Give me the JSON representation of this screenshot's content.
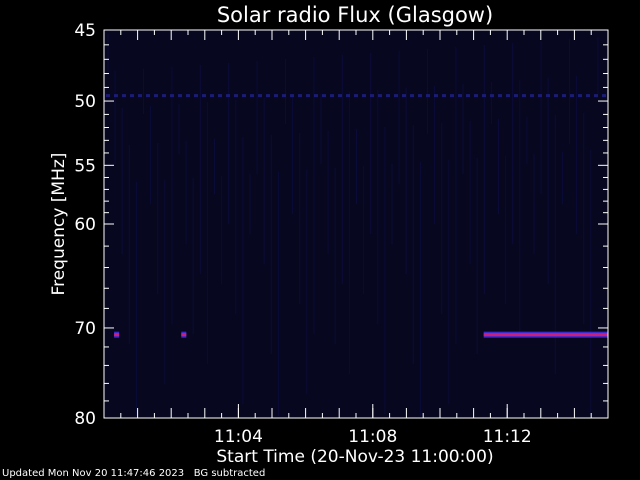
{
  "chart_data": {
    "type": "heatmap",
    "title": "Solar radio Flux (Glasgow)",
    "xlabel": "Start Time (20-Nov-23 11:00:00)",
    "ylabel": "Frequency [MHz]",
    "x_unit": "minutes after 11:00:00",
    "xlim": [
      0,
      15
    ],
    "ylim": [
      80,
      45
    ],
    "x_ticks": [
      {
        "value": 4,
        "label": "11:04"
      },
      {
        "value": 8,
        "label": "11:08"
      },
      {
        "value": 12,
        "label": "11:12"
      }
    ],
    "y_ticks": [
      {
        "value": 45,
        "label": "45"
      },
      {
        "value": 50,
        "label": "50"
      },
      {
        "value": 55,
        "label": "55"
      },
      {
        "value": 60,
        "label": "60"
      },
      {
        "value": 70,
        "label": "70"
      },
      {
        "value": 80,
        "label": "80"
      }
    ],
    "background_color": "#07071f",
    "highlight_color": "#cc1f7a",
    "interference_band_mhz": 49.6,
    "bursts": [
      {
        "freq_mhz": 70.7,
        "start_min": 0.3,
        "end_min": 0.45
      },
      {
        "freq_mhz": 70.7,
        "start_min": 2.3,
        "end_min": 2.45
      },
      {
        "freq_mhz": 70.7,
        "start_min": 11.3,
        "end_min": 15.0
      }
    ]
  },
  "footer": {
    "updated": "Updated Mon Nov 20 11:47:46 2023",
    "bg_note": "BG subtracted"
  }
}
